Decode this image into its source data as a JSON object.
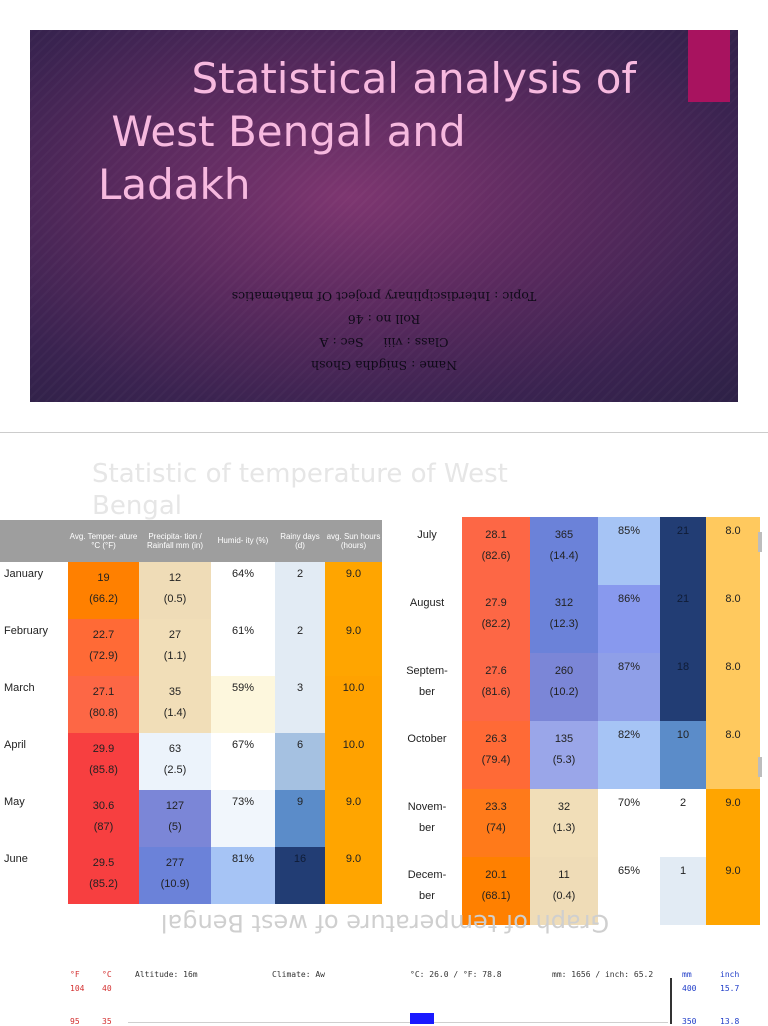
{
  "slide1": {
    "title_lines": [
      "       Statistical analysis of",
      " West Bengal and",
      "Ladakh"
    ],
    "info_lines": [
      "Name : Snigdha Ghosh",
      "Class : viii     Sec : A",
      "Roll no : 46",
      "Topic : Interdisciplinary project Of mathematics"
    ]
  },
  "slide2": {
    "title_lines": [
      "Statistic of temperature of West",
      "Bengal"
    ],
    "headers": [
      "",
      "Avg. Temper- ature °C (°F)",
      "Precipita- tion / Rainfall mm (in)",
      "Humid- ity (%)",
      "Rainy days (d)",
      "avg. Sun hours (hours)"
    ],
    "left_rows": [
      {
        "month": "January",
        "temp": "19",
        "temp_f": "(66.2)",
        "rain": "12",
        "rain_in": "(0.5)",
        "hum": "64%",
        "days": "2",
        "sun": "9.0"
      },
      {
        "month": "February",
        "temp": "22.7",
        "temp_f": "(72.9)",
        "rain": "27",
        "rain_in": "(1.1)",
        "hum": "61%",
        "days": "2",
        "sun": "9.0"
      },
      {
        "month": "March",
        "temp": "27.1",
        "temp_f": "(80.8)",
        "rain": "35",
        "rain_in": "(1.4)",
        "hum": "59%",
        "days": "3",
        "sun": "10.0"
      },
      {
        "month": "April",
        "temp": "29.9",
        "temp_f": "(85.8)",
        "rain": "63",
        "rain_in": "(2.5)",
        "hum": "67%",
        "days": "6",
        "sun": "10.0"
      },
      {
        "month": "May",
        "temp": "30.6",
        "temp_f": "(87)",
        "rain": "127",
        "rain_in": "(5)",
        "hum": "73%",
        "days": "9",
        "sun": "9.0"
      },
      {
        "month": "June",
        "temp": "29.5",
        "temp_f": "(85.2)",
        "rain": "277",
        "rain_in": "(10.9)",
        "hum": "81%",
        "days": "16",
        "sun": "9.0"
      }
    ],
    "right_rows": [
      {
        "month": "July",
        "month2": "",
        "temp": "28.1",
        "temp_f": "(82.6)",
        "rain": "365",
        "rain_in": "(14.4)",
        "hum": "85%",
        "days": "21",
        "sun": "8.0"
      },
      {
        "month": "August",
        "month2": "",
        "temp": "27.9",
        "temp_f": "(82.2)",
        "rain": "312",
        "rain_in": "(12.3)",
        "hum": "86%",
        "days": "21",
        "sun": "8.0"
      },
      {
        "month": "Septem-",
        "month2": "ber",
        "temp": "27.6",
        "temp_f": "(81.6)",
        "rain": "260",
        "rain_in": "(10.2)",
        "hum": "87%",
        "days": "18",
        "sun": "8.0"
      },
      {
        "month": "October",
        "month2": "",
        "temp": "26.3",
        "temp_f": "(79.4)",
        "rain": "135",
        "rain_in": "(5.3)",
        "hum": "82%",
        "days": "10",
        "sun": "8.0"
      },
      {
        "month": "Novem-",
        "month2": "ber",
        "temp": "23.3",
        "temp_f": "(74)",
        "rain": "32",
        "rain_in": "(1.3)",
        "hum": "70%",
        "days": "2",
        "sun": "9.0"
      },
      {
        "month": "Decem-",
        "month2": "ber",
        "temp": "20.1",
        "temp_f": "(68.1)",
        "rain": "11",
        "rain_in": "(0.4)",
        "hum": "65%",
        "days": "1",
        "sun": "9.0"
      }
    ]
  },
  "slide3": {
    "title": "Graph of temperature of west Bengal",
    "unit_f": "°F",
    "unit_c": "°C",
    "altitude": "Altitude: 16m",
    "climate": "Climate: Aw",
    "avg_temp": "°C: 26.0 / °F: 78.8",
    "rain_total": "mm: 1656 / inch: 65.2",
    "unit_mm": "mm",
    "unit_inch": "inch",
    "f_ticks": [
      "104",
      "95"
    ],
    "c_ticks": [
      "40",
      "35"
    ],
    "mm_ticks": [
      "400",
      "350"
    ],
    "inch_ticks": [
      "15.7",
      "13.8"
    ]
  }
}
